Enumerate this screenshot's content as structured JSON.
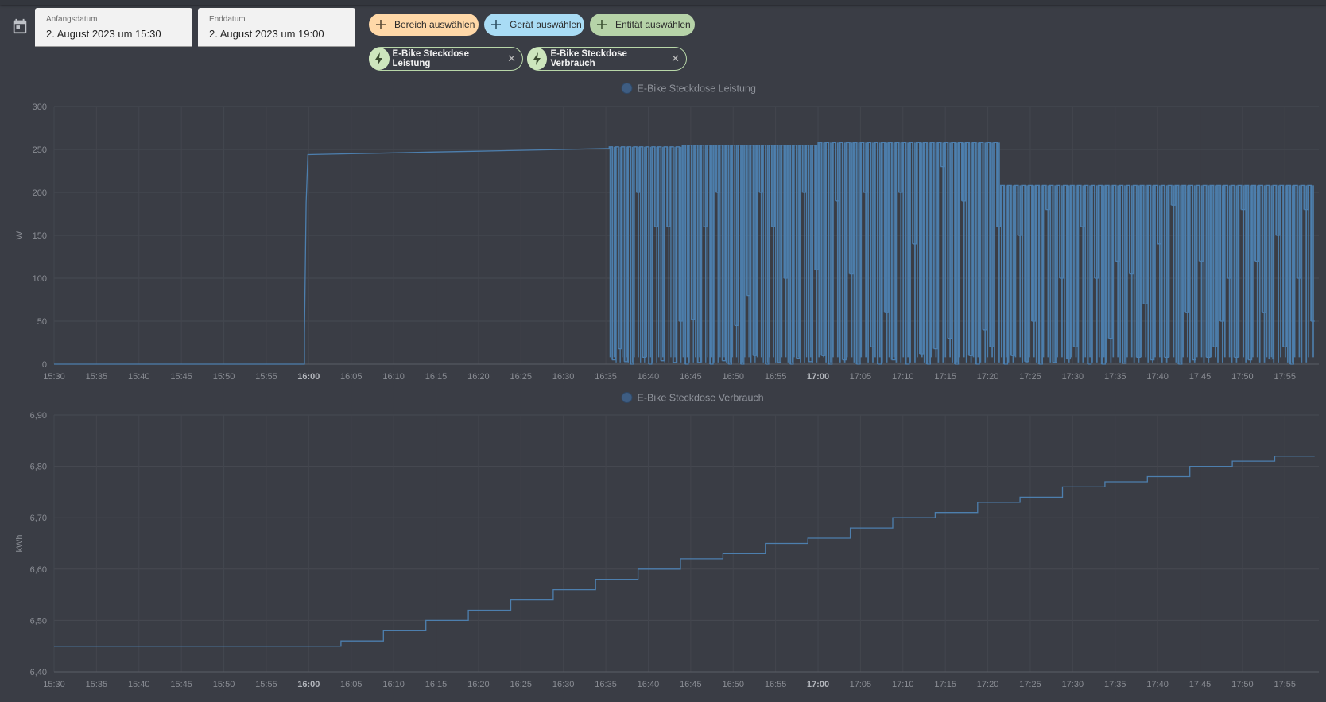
{
  "start_date": {
    "label": "Anfangsdatum",
    "value": "2. August 2023 um 15:30"
  },
  "end_date": {
    "label": "Enddatum",
    "value": "2. August 2023 um 19:00"
  },
  "target_chips": {
    "area": "Bereich auswählen",
    "device": "Gerät auswählen",
    "entity": "Entität auswählen"
  },
  "selected_entities": [
    {
      "label": "E-Bike Steckdose Leistung"
    },
    {
      "label": "E-Bike Steckdose Verbrauch"
    }
  ],
  "colors": {
    "series": "#4d7fae",
    "area_chip": "#ffd8a8",
    "device_chip": "#a9dcf5",
    "entity_chip": "#b6d3a8",
    "background": "#3a3d45"
  },
  "chart_data": [
    {
      "type": "line",
      "legend": "E-Bike Steckdose Leistung",
      "ylabel": "W",
      "yticks": [
        "0",
        "50",
        "100",
        "150",
        "200",
        "250",
        "300"
      ],
      "ylim": [
        0,
        300
      ],
      "xticks": [
        "15:30",
        "15:35",
        "15:40",
        "15:45",
        "15:50",
        "15:55",
        "16:00",
        "16:05",
        "16:10",
        "16:15",
        "16:20",
        "16:25",
        "16:30",
        "16:35",
        "16:40",
        "16:45",
        "16:50",
        "16:55",
        "17:00",
        "17:05",
        "17:10",
        "17:15",
        "17:20",
        "17:25",
        "17:30",
        "17:35",
        "17:40",
        "17:45",
        "17:50",
        "17:55"
      ],
      "bold_ticks": [
        "16:00",
        "17:00"
      ],
      "xlim_minutes": [
        0,
        149
      ],
      "series": [
        {
          "name": "E-Bike Steckdose Leistung",
          "points": [
            [
              0,
              0
            ],
            [
              29.5,
              0
            ],
            [
              29.5,
              35
            ],
            [
              29.7,
              188
            ],
            [
              29.9,
              244
            ],
            [
              35,
              245
            ],
            [
              40,
              246
            ],
            [
              45,
              247
            ],
            [
              50,
              248
            ],
            [
              55,
              249
            ],
            [
              60,
              250
            ],
            [
              65,
              251
            ],
            [
              65.4,
              251
            ]
          ],
          "oscillating": [
            {
              "from": 65.4,
              "to": 74,
              "high": 253,
              "lows": [
                5,
                18,
                3,
                0,
                200,
                8,
                0,
                160,
                4,
                160,
                2,
                50
              ]
            },
            {
              "from": 74,
              "to": 90,
              "high": 255,
              "lows": [
                0,
                52,
                2,
                160,
                0,
                200,
                4,
                0,
                45,
                0,
                80,
                10,
                200,
                0,
                160,
                2,
                100,
                0,
                7,
                200,
                3,
                110
              ]
            },
            {
              "from": 90,
              "to": 111.5,
              "high": 258,
              "lows": [
                10,
                0,
                190,
                5,
                105,
                0,
                200,
                20,
                0,
                60,
                5,
                200,
                0,
                140,
                12,
                0,
                18,
                230,
                30,
                0,
                190,
                10,
                0,
                40,
                20,
                160
              ]
            },
            {
              "from": 111.5,
              "to": 148.5,
              "high": 208,
              "lows": [
                0,
                10,
                150,
                3,
                50,
                0,
                180,
                2,
                100,
                6,
                20,
                160,
                0,
                100,
                0,
                30,
                120,
                1,
                105,
                8,
                70,
                5,
                140,
                8,
                185,
                0,
                60,
                5,
                120,
                8,
                20,
                50,
                100,
                8,
                180,
                5,
                120,
                60,
                6,
                150,
                20,
                0,
                100,
                180,
                50
              ]
            }
          ]
        }
      ]
    },
    {
      "type": "line",
      "legend": "E-Bike Steckdose Verbrauch",
      "ylabel": "kWh",
      "yticks": [
        "6,40",
        "6,50",
        "6,60",
        "6,70",
        "6,80",
        "6,90"
      ],
      "ylim": [
        6.4,
        6.9
      ],
      "xticks": [
        "15:30",
        "15:35",
        "15:40",
        "15:45",
        "15:50",
        "15:55",
        "16:00",
        "16:05",
        "16:10",
        "16:15",
        "16:20",
        "16:25",
        "16:30",
        "16:35",
        "16:40",
        "16:45",
        "16:50",
        "16:55",
        "17:00",
        "17:05",
        "17:10",
        "17:15",
        "17:20",
        "17:25",
        "17:30",
        "17:35",
        "17:40",
        "17:45",
        "17:50",
        "17:55"
      ],
      "bold_ticks": [
        "16:00",
        "17:00"
      ],
      "xlim_minutes": [
        0,
        149
      ],
      "series": [
        {
          "name": "E-Bike Steckdose Verbrauch",
          "points": [
            [
              0,
              6.45
            ],
            [
              33.8,
              6.45
            ],
            [
              33.8,
              6.46
            ],
            [
              38.8,
              6.46
            ],
            [
              38.8,
              6.48
            ],
            [
              43.8,
              6.48
            ],
            [
              43.8,
              6.5
            ],
            [
              48.8,
              6.5
            ],
            [
              48.8,
              6.52
            ],
            [
              53.8,
              6.52
            ],
            [
              53.8,
              6.54
            ],
            [
              58.8,
              6.54
            ],
            [
              58.8,
              6.56
            ],
            [
              63.8,
              6.56
            ],
            [
              63.8,
              6.58
            ],
            [
              68.8,
              6.58
            ],
            [
              68.8,
              6.6
            ],
            [
              73.8,
              6.6
            ],
            [
              73.8,
              6.62
            ],
            [
              78.8,
              6.62
            ],
            [
              78.8,
              6.63
            ],
            [
              83.8,
              6.63
            ],
            [
              83.8,
              6.65
            ],
            [
              88.8,
              6.65
            ],
            [
              88.8,
              6.66
            ],
            [
              93.8,
              6.66
            ],
            [
              93.8,
              6.68
            ],
            [
              98.8,
              6.68
            ],
            [
              98.8,
              6.7
            ],
            [
              103.8,
              6.7
            ],
            [
              103.8,
              6.71
            ],
            [
              108.8,
              6.71
            ],
            [
              108.8,
              6.73
            ],
            [
              113.8,
              6.73
            ],
            [
              113.8,
              6.74
            ],
            [
              118.8,
              6.74
            ],
            [
              118.8,
              6.76
            ],
            [
              123.8,
              6.76
            ],
            [
              123.8,
              6.77
            ],
            [
              128.8,
              6.77
            ],
            [
              128.8,
              6.78
            ],
            [
              133.8,
              6.78
            ],
            [
              133.8,
              6.8
            ],
            [
              138.8,
              6.8
            ],
            [
              138.8,
              6.81
            ],
            [
              143.8,
              6.81
            ],
            [
              143.8,
              6.82
            ],
            [
              148.5,
              6.82
            ]
          ]
        }
      ]
    }
  ]
}
